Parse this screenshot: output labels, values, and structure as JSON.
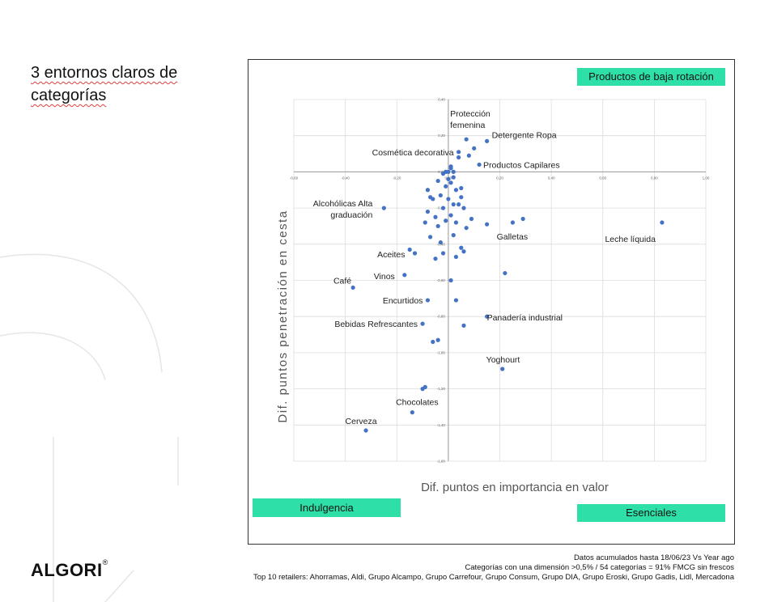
{
  "slide": {
    "title_line1": "3 entornos claros de",
    "title_line2": "categorías",
    "logo": "ALGORI",
    "logo_mark": "®"
  },
  "quadrants": {
    "top_right": "Productos de baja rotación",
    "bottom_left": "Indulgencia",
    "bottom_right": "Esenciales",
    "color": "#2ee0a8"
  },
  "footer": {
    "line1": "Datos acumulados hasta 18/06/23 Vs Year ago",
    "line2": "Categorías con una dimensión >0,5% / 54 categorías = 91% FMCG sin frescos",
    "line3": "Top 10 retailers: Ahorramas, Aldi, Grupo Alcampo, Grupo Carrefour, Grupo Consum, Grupo DIA, Grupo Eroski, Grupo Gadis, Lidl, Mercadona"
  },
  "chart_data": {
    "type": "scatter",
    "xlabel": "Dif. puntos en importancia en valor",
    "ylabel": "Dif. puntos penetración en cesta",
    "xlim": [
      -0.6,
      1.0
    ],
    "ylim": [
      -1.6,
      0.4
    ],
    "x_ticks": [
      "-0,60",
      "-0,40",
      "-0,20",
      "0,00",
      "0,20",
      "0,40",
      "0,60",
      "0,80",
      "1,00"
    ],
    "y_ticks": [
      "0,40",
      "0,20",
      "0,00",
      "-0,20",
      "-0,40",
      "-0,60",
      "-0,80",
      "-1,00",
      "-1,20",
      "-1,40",
      "-1,60"
    ],
    "grid": true,
    "point_color": "#4472c4",
    "labeled_points": [
      {
        "label": "Protección femenina",
        "x": 0.07,
        "y": 0.18
      },
      {
        "label": "Detergente Ropa",
        "x": 0.15,
        "y": 0.17
      },
      {
        "label": "Cosmética decorativa",
        "x": 0.04,
        "y": 0.11
      },
      {
        "label": "Productos Capilares",
        "x": 0.12,
        "y": 0.04
      },
      {
        "label": "Alcohólicas Alta graduación",
        "x": -0.25,
        "y": -0.2
      },
      {
        "label": "Galletas",
        "x": 0.15,
        "y": -0.29
      },
      {
        "label": "Leche líquida",
        "x": 0.83,
        "y": -0.28
      },
      {
        "label": "Aceites",
        "x": -0.13,
        "y": -0.45
      },
      {
        "label": "Vinos",
        "x": -0.17,
        "y": -0.57
      },
      {
        "label": "Café",
        "x": -0.37,
        "y": -0.64
      },
      {
        "label": "Encurtidos",
        "x": -0.08,
        "y": -0.71
      },
      {
        "label": "Bebidas Refrescantes",
        "x": -0.1,
        "y": -0.84
      },
      {
        "label": "Panadería industrial",
        "x": 0.15,
        "y": -0.8
      },
      {
        "label": "Yoghourt",
        "x": 0.21,
        "y": -1.09
      },
      {
        "label": "Chocolates",
        "x": -0.14,
        "y": -1.33
      },
      {
        "label": "Cerveza",
        "x": -0.32,
        "y": -1.43
      }
    ],
    "points": [
      [
        0.0,
        0.0
      ],
      [
        0.01,
        0.02
      ],
      [
        -0.02,
        -0.01
      ],
      [
        0.02,
        -0.03
      ],
      [
        -0.04,
        -0.05
      ],
      [
        0.01,
        -0.06
      ],
      [
        -0.01,
        -0.08
      ],
      [
        0.03,
        -0.1
      ],
      [
        -0.03,
        -0.13
      ],
      [
        0.0,
        -0.15
      ],
      [
        0.05,
        -0.14
      ],
      [
        -0.06,
        -0.15
      ],
      [
        0.02,
        -0.18
      ],
      [
        -0.02,
        -0.2
      ],
      [
        0.06,
        -0.2
      ],
      [
        -0.08,
        -0.22
      ],
      [
        0.01,
        -0.24
      ],
      [
        -0.05,
        -0.25
      ],
      [
        0.09,
        -0.26
      ],
      [
        -0.01,
        -0.27
      ],
      [
        -0.09,
        -0.28
      ],
      [
        0.03,
        -0.28
      ],
      [
        -0.04,
        -0.3
      ],
      [
        0.07,
        -0.31
      ],
      [
        -0.07,
        -0.36
      ],
      [
        0.02,
        -0.35
      ],
      [
        -0.03,
        -0.39
      ],
      [
        0.05,
        -0.42
      ],
      [
        -0.02,
        -0.45
      ],
      [
        0.03,
        -0.47
      ],
      [
        -0.05,
        -0.48
      ],
      [
        0.06,
        -0.44
      ],
      [
        -0.15,
        -0.43
      ],
      [
        -0.08,
        -0.1
      ],
      [
        -0.07,
        -0.14
      ],
      [
        0.04,
        0.08
      ],
      [
        0.08,
        0.09
      ],
      [
        0.02,
        0.0
      ],
      [
        0.0,
        -0.04
      ],
      [
        -0.01,
        0.0
      ],
      [
        0.01,
        0.03
      ],
      [
        0.29,
        -0.26
      ],
      [
        0.25,
        -0.28
      ],
      [
        0.22,
        -0.56
      ],
      [
        0.01,
        -0.6
      ],
      [
        0.03,
        -0.71
      ],
      [
        0.06,
        -0.85
      ],
      [
        -0.04,
        -0.93
      ],
      [
        -0.06,
        -0.94
      ],
      [
        -0.09,
        -1.19
      ],
      [
        -0.1,
        -1.2
      ],
      [
        0.1,
        0.13
      ],
      [
        0.05,
        -0.09
      ],
      [
        0.04,
        -0.18
      ]
    ]
  }
}
